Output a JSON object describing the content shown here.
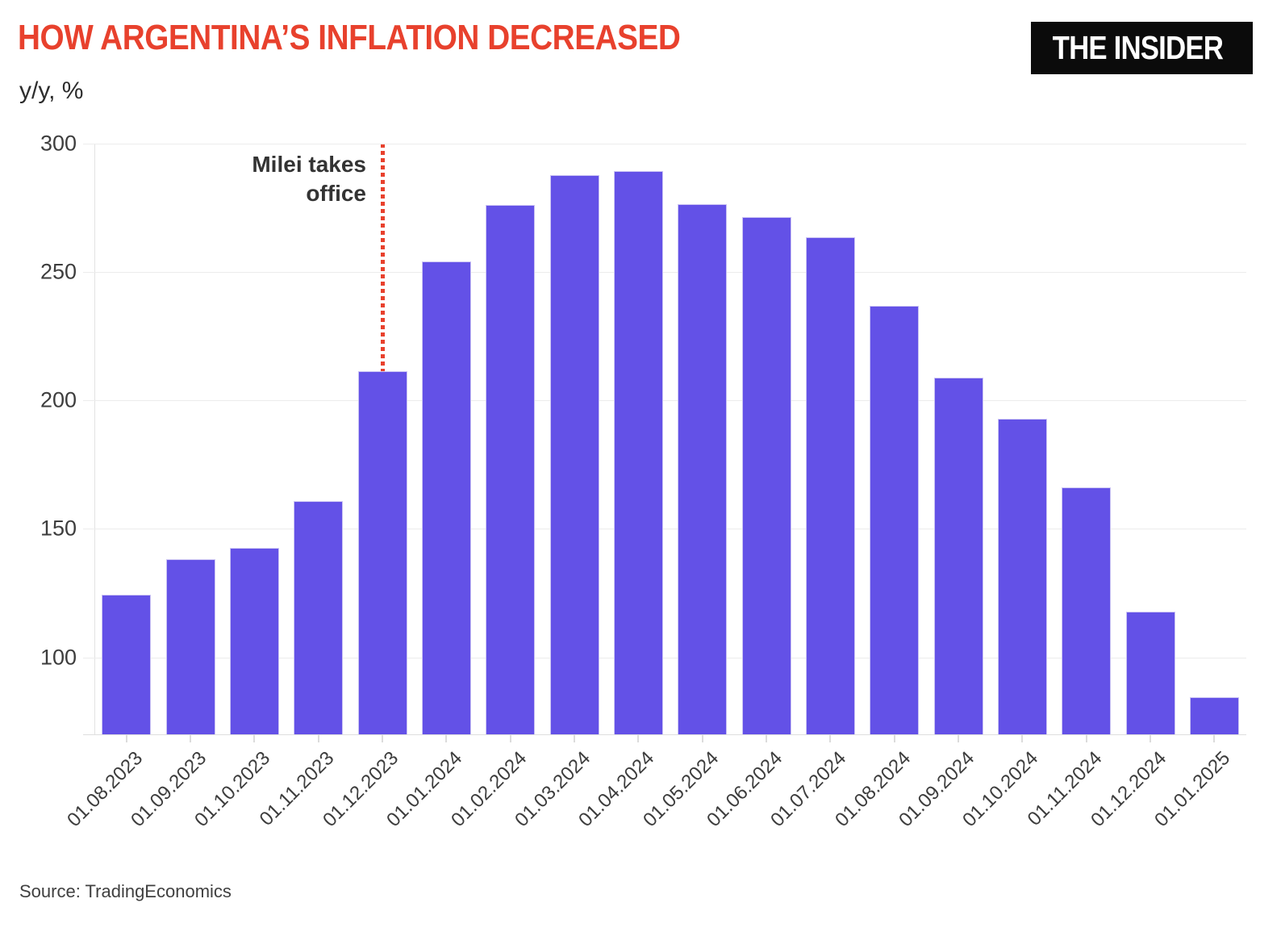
{
  "header": {
    "title": "HOW ARGENTINA’S INFLATION DECREASED",
    "subtitle": "y/y, %",
    "logo_text": "THE INSIDER"
  },
  "annotation": {
    "text": "Milei takes office",
    "lines": [
      "Milei takes",
      "office"
    ]
  },
  "source_note": "Source: TradingEconomics",
  "colors": {
    "title_red": "#e8412d",
    "bar_purple": "#6351e7",
    "bar_edge": "#cac3f3",
    "event_line_red": "#e8412d",
    "grid_gray": "#ececec",
    "axis_gray": "#e2e2e2",
    "text_dark": "#3d3d3d",
    "logo_bg": "#0b0b0b",
    "logo_fg": "#ffffff"
  },
  "chart_data": {
    "type": "bar",
    "title": "HOW ARGENTINA’S INFLATION DECREASED",
    "xlabel": "",
    "ylabel": "y/y, %",
    "categories": [
      "01.08.2023",
      "01.09.2023",
      "01.10.2023",
      "01.11.2023",
      "01.12.2023",
      "01.01.2024",
      "01.02.2024",
      "01.03.2024",
      "01.04.2024",
      "01.05.2024",
      "01.06.2024",
      "01.07.2024",
      "01.08.2024",
      "01.09.2024",
      "01.10.2024",
      "01.11.2024",
      "01.12.2024",
      "01.01.2025"
    ],
    "values": [
      124.4,
      138.3,
      142.7,
      160.9,
      211.4,
      254.2,
      276.2,
      287.9,
      289.4,
      276.4,
      271.5,
      263.4,
      236.7,
      209.0,
      193.0,
      166.0,
      117.8,
      84.5
    ],
    "ylim": [
      70,
      300
    ],
    "yticks": [
      300,
      250,
      200,
      150,
      100
    ],
    "grid": true,
    "legend": false,
    "annotation": {
      "text": "Milei takes office",
      "at_category": "01.12.2023",
      "line_style": "dotted",
      "line_color": "#e8412d"
    }
  }
}
